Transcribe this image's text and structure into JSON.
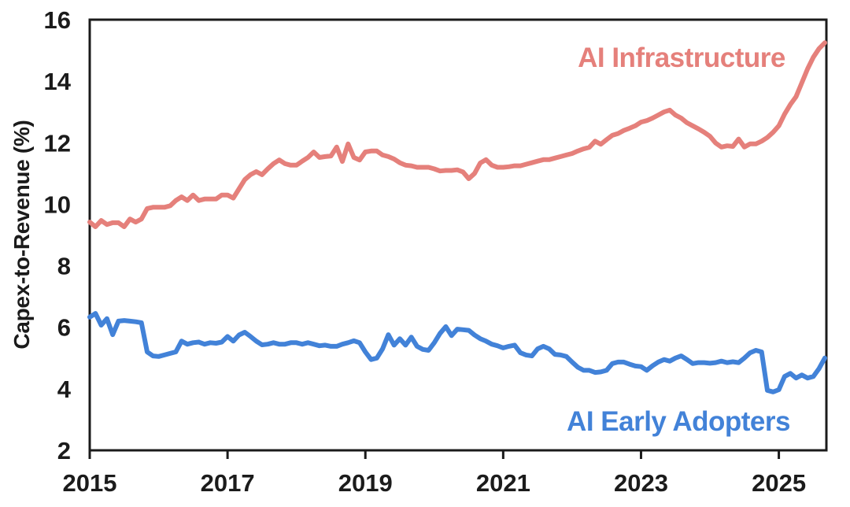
{
  "y_axis": {
    "label": "Capex-to-Revenue (%)",
    "tick_labels": [
      "2",
      "4",
      "6",
      "8",
      "10",
      "12",
      "14",
      "16"
    ]
  },
  "x_axis": {
    "tick_labels": [
      "2015",
      "2017",
      "2019",
      "2021",
      "2023",
      "2025"
    ]
  },
  "series_labels": {
    "infrastructure": "AI Infrastructure",
    "early_adopters": "AI Early Adopters"
  },
  "colors": {
    "infrastructure": "#e5807b",
    "early_adopters": "#4282d8",
    "axis": "#1b1b1b",
    "background": "#ffffff"
  },
  "chart_data": {
    "type": "line",
    "title": "",
    "xlabel": "",
    "ylabel": "Capex-to-Revenue (%)",
    "frequency": "monthly",
    "x_start": "2015-01",
    "x_end": "2025-09",
    "xlim": [
      2015,
      2025.69
    ],
    "ylim": [
      2,
      16
    ],
    "x_ticks": [
      2015,
      2017,
      2019,
      2021,
      2023,
      2025
    ],
    "y_ticks": [
      2,
      4,
      6,
      8,
      10,
      12,
      14,
      16
    ],
    "grid": false,
    "legend_position": "inline-labels",
    "series": [
      {
        "name": "AI Infrastructure",
        "color": "#e5807b",
        "values": [
          9.42,
          9.27,
          9.47,
          9.34,
          9.4,
          9.4,
          9.27,
          9.52,
          9.42,
          9.52,
          9.86,
          9.9,
          9.9,
          9.9,
          9.95,
          10.12,
          10.24,
          10.12,
          10.3,
          10.12,
          10.17,
          10.17,
          10.17,
          10.3,
          10.3,
          10.2,
          10.5,
          10.8,
          10.96,
          11.06,
          10.96,
          11.15,
          11.32,
          11.44,
          11.32,
          11.27,
          11.27,
          11.4,
          11.52,
          11.7,
          11.52,
          11.55,
          11.57,
          11.86,
          11.39,
          11.96,
          11.52,
          11.44,
          11.7,
          11.73,
          11.73,
          11.6,
          11.55,
          11.47,
          11.35,
          11.27,
          11.25,
          11.2,
          11.2,
          11.2,
          11.15,
          11.08,
          11.1,
          11.1,
          11.12,
          11.05,
          10.83,
          11.0,
          11.34,
          11.45,
          11.27,
          11.2,
          11.2,
          11.22,
          11.25,
          11.25,
          11.3,
          11.35,
          11.4,
          11.45,
          11.45,
          11.5,
          11.55,
          11.6,
          11.65,
          11.73,
          11.8,
          11.85,
          12.05,
          11.95,
          12.1,
          12.24,
          12.3,
          12.4,
          12.47,
          12.55,
          12.67,
          12.72,
          12.8,
          12.9,
          13.0,
          13.06,
          12.9,
          12.8,
          12.65,
          12.55,
          12.45,
          12.34,
          12.21,
          11.99,
          11.86,
          11.9,
          11.88,
          12.12,
          11.86,
          11.96,
          11.96,
          12.05,
          12.17,
          12.34,
          12.55,
          12.93,
          13.24,
          13.5,
          13.95,
          14.4,
          14.78,
          15.06,
          15.25
        ]
      },
      {
        "name": "AI Early Adopters",
        "color": "#4282d8",
        "values": [
          6.33,
          6.45,
          6.07,
          6.28,
          5.76,
          6.2,
          6.22,
          6.2,
          6.18,
          6.15,
          5.2,
          5.07,
          5.05,
          5.1,
          5.15,
          5.2,
          5.55,
          5.45,
          5.5,
          5.52,
          5.45,
          5.5,
          5.48,
          5.52,
          5.7,
          5.55,
          5.75,
          5.84,
          5.7,
          5.55,
          5.43,
          5.45,
          5.5,
          5.45,
          5.45,
          5.5,
          5.5,
          5.45,
          5.5,
          5.45,
          5.4,
          5.42,
          5.38,
          5.38,
          5.45,
          5.5,
          5.56,
          5.5,
          5.2,
          4.95,
          5.0,
          5.3,
          5.76,
          5.42,
          5.63,
          5.42,
          5.68,
          5.38,
          5.28,
          5.25,
          5.5,
          5.8,
          6.02,
          5.73,
          5.94,
          5.92,
          5.9,
          5.75,
          5.63,
          5.55,
          5.45,
          5.4,
          5.33,
          5.38,
          5.42,
          5.17,
          5.1,
          5.07,
          5.3,
          5.38,
          5.3,
          5.12,
          5.1,
          5.05,
          4.87,
          4.7,
          4.6,
          4.6,
          4.53,
          4.55,
          4.6,
          4.82,
          4.87,
          4.87,
          4.8,
          4.74,
          4.72,
          4.6,
          4.75,
          4.87,
          4.95,
          4.9,
          5.0,
          5.07,
          4.95,
          4.82,
          4.85,
          4.85,
          4.83,
          4.85,
          4.9,
          4.85,
          4.88,
          4.85,
          5.0,
          5.17,
          5.25,
          5.2,
          3.95,
          3.9,
          3.97,
          4.4,
          4.5,
          4.35,
          4.45,
          4.35,
          4.4,
          4.66,
          5.0
        ]
      }
    ]
  }
}
